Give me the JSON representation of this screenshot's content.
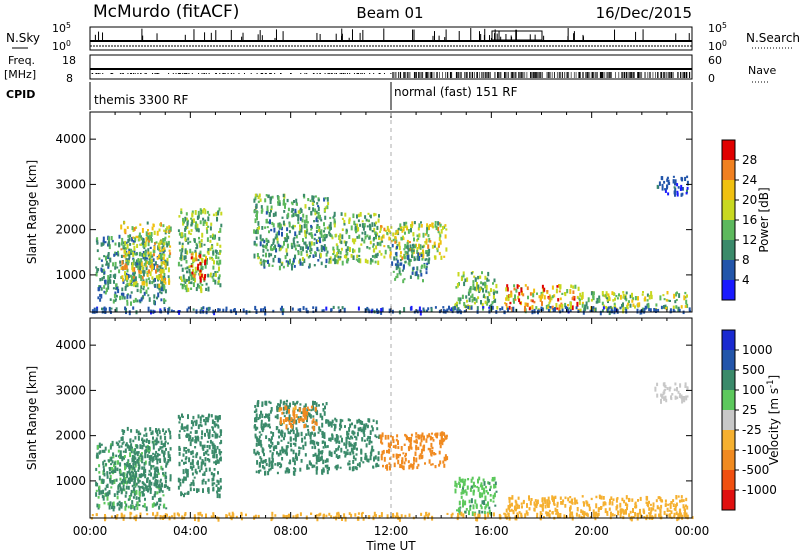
{
  "header": {
    "station": "McMurdo (fitACF)",
    "beam": "Beam 01",
    "date": "16/Dec/2015"
  },
  "top_panels": {
    "nsky_label": "N.Sky",
    "nsky_ticks": [
      "10^5",
      "10^0"
    ],
    "nsearch_label": "N.Search",
    "nsearch_ticks": [
      "10^5",
      "10^0"
    ],
    "freq_label_line1": "Freq.",
    "freq_label_line2": "[MHz]",
    "freq_ticks": [
      "18",
      "8"
    ],
    "nave_label": "Nave",
    "nave_ticks": [
      "60",
      "0"
    ],
    "cpid_label": "CPID",
    "cpid_segments": [
      {
        "label": "themis 3300 RF",
        "start_h": 0,
        "end_h": 12
      },
      {
        "label": "normal (fast) 151 RF",
        "start_h": 12,
        "end_h": 24
      }
    ]
  },
  "x_axis": {
    "label": "Time UT",
    "ticks": [
      "00:00",
      "04:00",
      "08:00",
      "12:00",
      "16:00",
      "20:00",
      "00:00"
    ]
  },
  "colors": {
    "power": [
      "#1a1aff",
      "#2255aa",
      "#3a8a6a",
      "#5cb85c",
      "#c8d820",
      "#f0c010",
      "#f08020",
      "#e00000"
    ],
    "velocity": [
      "#e01010",
      "#f05010",
      "#f08a20",
      "#f5b030",
      "#c8c8c8",
      "#5cc85c",
      "#3a8a6a",
      "#2255aa",
      "#1a2ad0"
    ]
  },
  "chart_data": [
    {
      "type": "heatmap",
      "title": "",
      "ylabel": "Slant Range [km]",
      "xlim": [
        0,
        24
      ],
      "ylim": [
        180,
        4600
      ],
      "yticks": [
        "1000",
        "2000",
        "3000",
        "4000"
      ],
      "ytick_values": [
        1000,
        2000,
        3000,
        4000
      ],
      "colorbar_label": "Power [dB]",
      "colorbar_range": [
        0,
        32
      ],
      "colorbar_ticks": [
        "4",
        "8",
        "12",
        "16",
        "20",
        "24",
        "28"
      ],
      "colorbar_tick_values": [
        4,
        8,
        12,
        16,
        20,
        24,
        28
      ],
      "regions": [
        {
          "t0": 0.2,
          "t1": 3.0,
          "r0": 400,
          "r1": 1900,
          "value": 10
        },
        {
          "t0": 1.2,
          "t1": 3.2,
          "r0": 800,
          "r1": 2200,
          "value": 18
        },
        {
          "t0": 3.5,
          "t1": 5.2,
          "r0": 700,
          "r1": 2500,
          "value": 14
        },
        {
          "t0": 4.0,
          "t1": 4.6,
          "r0": 900,
          "r1": 1500,
          "value": 26
        },
        {
          "t0": 6.5,
          "t1": 9.5,
          "r0": 1200,
          "r1": 2800,
          "value": 12
        },
        {
          "t0": 9.5,
          "t1": 11.5,
          "r0": 1300,
          "r1": 2400,
          "value": 14
        },
        {
          "t0": 11.5,
          "t1": 14.2,
          "r0": 1400,
          "r1": 2200,
          "value": 18
        },
        {
          "t0": 12.0,
          "t1": 13.5,
          "r0": 900,
          "r1": 1700,
          "value": 10
        },
        {
          "t0": 14.5,
          "t1": 16.2,
          "r0": 300,
          "r1": 1100,
          "value": 14
        },
        {
          "t0": 16.5,
          "t1": 19.5,
          "r0": 250,
          "r1": 800,
          "value": 22
        },
        {
          "t0": 19.5,
          "t1": 23.8,
          "r0": 250,
          "r1": 650,
          "value": 16
        },
        {
          "t0": 22.5,
          "t1": 23.8,
          "r0": 2800,
          "r1": 3200,
          "value": 6
        },
        {
          "t0": 0.0,
          "t1": 24.0,
          "r0": 200,
          "r1": 320,
          "value": 6
        }
      ]
    },
    {
      "type": "heatmap",
      "title": "",
      "ylabel": "Slant Range [km]",
      "xlim": [
        0,
        24
      ],
      "ylim": [
        180,
        4600
      ],
      "yticks": [
        "1000",
        "2000",
        "3000",
        "4000"
      ],
      "ytick_values": [
        1000,
        2000,
        3000,
        4000
      ],
      "colorbar_label": "Velocity [m s^-1]",
      "colorbar_ticks": [
        "1000",
        "500",
        "100",
        "25",
        "-25",
        "-100",
        "-500",
        "-1000"
      ],
      "colorbar_tick_values": [
        1000,
        500,
        100,
        25,
        -25,
        -100,
        -500,
        -1000
      ],
      "regions": [
        {
          "t0": 0.2,
          "t1": 3.0,
          "r0": 400,
          "r1": 1900,
          "value": 120
        },
        {
          "t0": 1.2,
          "t1": 3.2,
          "r0": 800,
          "r1": 2200,
          "value": 200
        },
        {
          "t0": 3.5,
          "t1": 5.2,
          "r0": 700,
          "r1": 2500,
          "value": 200
        },
        {
          "t0": 6.5,
          "t1": 9.5,
          "r0": 1200,
          "r1": 2800,
          "value": 200
        },
        {
          "t0": 7.5,
          "t1": 9.0,
          "r0": 2200,
          "r1": 2700,
          "value": -150
        },
        {
          "t0": 9.5,
          "t1": 11.5,
          "r0": 1300,
          "r1": 2400,
          "value": 200
        },
        {
          "t0": 11.5,
          "t1": 14.2,
          "r0": 1300,
          "r1": 2100,
          "value": -200
        },
        {
          "t0": 14.5,
          "t1": 16.2,
          "r0": 300,
          "r1": 1100,
          "value": 80
        },
        {
          "t0": 16.5,
          "t1": 23.8,
          "r0": 200,
          "r1": 700,
          "value": -60
        },
        {
          "t0": 22.5,
          "t1": 23.8,
          "r0": 2800,
          "r1": 3200,
          "value": 0
        },
        {
          "t0": 0.0,
          "t1": 24.0,
          "r0": 200,
          "r1": 320,
          "value": -60
        }
      ]
    }
  ]
}
